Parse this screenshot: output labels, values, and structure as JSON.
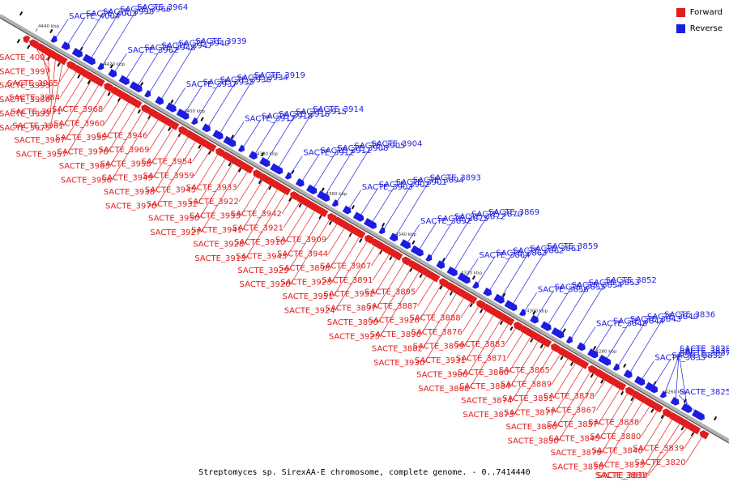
{
  "title": "Streptomyces sp. SirexAA-E chromosome, complete genome. - 0..7414440",
  "legend": {
    "forward": {
      "label": "Forward",
      "color": "#e11d1d"
    },
    "reverse": {
      "label": "Reverse",
      "color": "#1d1de1"
    }
  },
  "colors": {
    "forward": "#e11d1d",
    "reverse": "#1d1de1",
    "axis": "#808080"
  },
  "ticks": [
    "4440 kbp",
    "4420 kbp",
    "4400 kbp",
    "4380 kbp",
    "4360 kbp",
    "4340 kbp",
    "4320 kbp",
    "4300 kbp",
    "4280 kbp",
    "4260 kbp"
  ],
  "reverse_genes": [
    "SACTE_4004",
    "SACTE_4003",
    "SACTE_3998",
    "SACTE_3966",
    "SACTE_3964",
    "SACTE_3962",
    "SACTE_3948",
    "SACTE_3947",
    "SACTE_3940",
    "SACTE_3939",
    "SACTE_3937",
    "SACTE_3935",
    "SACTE_3936",
    "SACTE_3934",
    "SACTE_3919",
    "SACTE_3917",
    "SACTE_3918",
    "SACTE_3916",
    "SACTE_3915",
    "SACTE_3914",
    "SACTE_3912",
    "SACTE_3911",
    "SACTE_3908",
    "SACTE_3905",
    "SACTE_3904",
    "SACTE_3903",
    "SACTE_3902",
    "SACTE_3901",
    "SACTE_3894",
    "SACTE_3893",
    "SACTE_3892",
    "SACTE_3875",
    "SACTE_3872",
    "SACTE_3870",
    "SACTE_3869",
    "SACTE_3864",
    "SACTE_3863",
    "SACTE_3862",
    "SACTE_3861",
    "SACTE_3859",
    "SACTE_3856",
    "SACTE_3855",
    "SACTE_3854",
    "SACTE_3853",
    "SACTE_3852",
    "SACTE_3848",
    "SACTE_3844",
    "SACTE_3843",
    "SACTE_3840",
    "SACTE_3836",
    "SACTE_3835",
    "SACTE_3832",
    "SACTE_3837",
    "SACTE_3830",
    "SACTE_3829",
    "SACTE_3825"
  ],
  "forward_genes": [
    "SACTE_4002",
    "SACTE_3997",
    "SACTE_3993",
    "SACTE_3986",
    "SACTE_3995",
    "SACTE_3975",
    "SACTE_3965",
    "SACTE_3984",
    "SACTE_3971",
    "SACTE_3961",
    "SACTE_3967",
    "SACTE_3957",
    "SACTE_3968",
    "SACTE_3960",
    "SACTE_3955",
    "SACTE_3976",
    "SACTE_3963",
    "SACTE_3956",
    "SACTE_3946",
    "SACTE_3969",
    "SACTE_3958",
    "SACTE_3949",
    "SACTE_3938",
    "SACTE_3970",
    "SACTE_3954",
    "SACTE_3959",
    "SACTE_3945",
    "SACTE_3932",
    "SACTE_3950",
    "SACTE_3927",
    "SACTE_3933",
    "SACTE_3922",
    "SACTE_3953",
    "SACTE_3941",
    "SACTE_3928",
    "SACTE_3913",
    "SACTE_3942",
    "SACTE_3921",
    "SACTE_3910",
    "SACTE_3943",
    "SACTE_3929",
    "SACTE_3920",
    "SACTE_3909",
    "SACTE_3944",
    "SACTE_3898",
    "SACTE_3923",
    "SACTE_3951",
    "SACTE_3924",
    "SACTE_3907",
    "SACTE_3891",
    "SACTE_3952",
    "SACTE_3897",
    "SACTE_3890",
    "SACTE_3925",
    "SACTE_3895",
    "SACTE_3887",
    "SACTE_3926",
    "SACTE_3896",
    "SACTE_3882",
    "SACTE_3930",
    "SACTE_3888",
    "SACTE_3876",
    "SACTE_3899",
    "SACTE_3931",
    "SACTE_3906",
    "SACTE_3868",
    "SACTE_3883",
    "SACTE_3871",
    "SACTE_3860",
    "SACTE_3884",
    "SACTE_3874",
    "SACTE_3873",
    "SACTE_3865",
    "SACTE_3889",
    "SACTE_3851",
    "SACTE_3877",
    "SACTE_3866",
    "SACTE_3850",
    "SACTE_3878",
    "SACTE_3867",
    "SACTE_3857",
    "SACTE_3845",
    "SACTE_3879",
    "SACTE_3858",
    "SACTE_3838",
    "SACTE_3880",
    "SACTE_3846",
    "SACTE_3833",
    "SACTE_3881",
    "SACTE_3834",
    "SACTE_3839",
    "SACTE_3820"
  ]
}
